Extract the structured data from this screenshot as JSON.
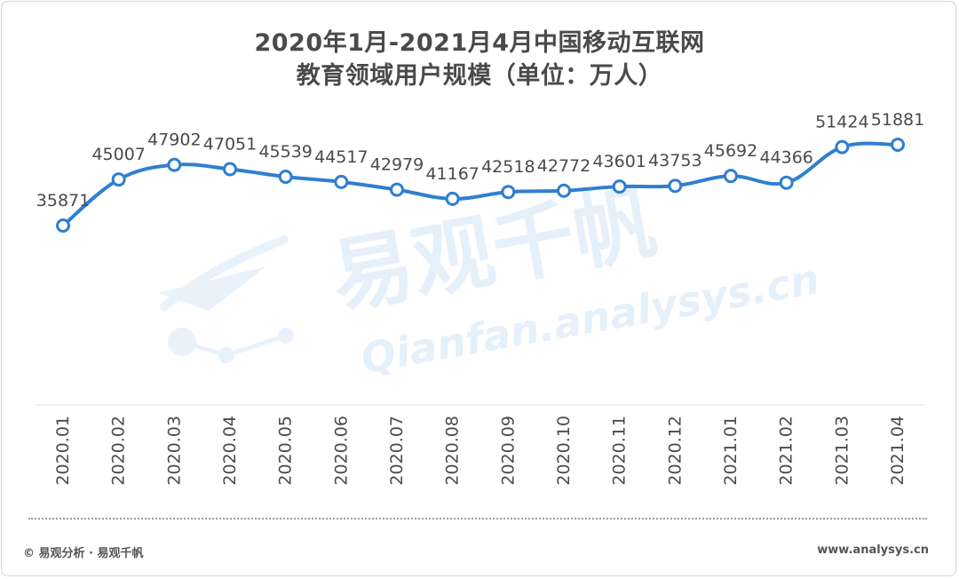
{
  "chart_data": {
    "type": "line",
    "title_line1": "2020年1月-2021月4月中国移动互联网",
    "title_line2": "教育领域用户规模（单位：万人）",
    "categories": [
      "2020.01",
      "2020.02",
      "2020.03",
      "2020.04",
      "2020.05",
      "2020.06",
      "2020.07",
      "2020.08",
      "2020.09",
      "2020.10",
      "2020.11",
      "2020.12",
      "2021.01",
      "2021.02",
      "2021.03",
      "2021.04"
    ],
    "series": [
      {
        "values": [
          35871,
          45007,
          47902,
          47051,
          45539,
          44517,
          42979,
          41167,
          42518,
          42772,
          43601,
          43753,
          45692,
          44366,
          51424,
          51881
        ]
      }
    ],
    "data_labels": true,
    "line_color": "#2f7fd1",
    "grid": false
  },
  "footer": {
    "copyright": "© 易观分析 · 易观千帆",
    "website": "www.analysys.cn"
  },
  "watermark": {
    "cn": "易观千帆",
    "en": "Qianfan.analysys.cn",
    "color": "#e6f0fa"
  }
}
